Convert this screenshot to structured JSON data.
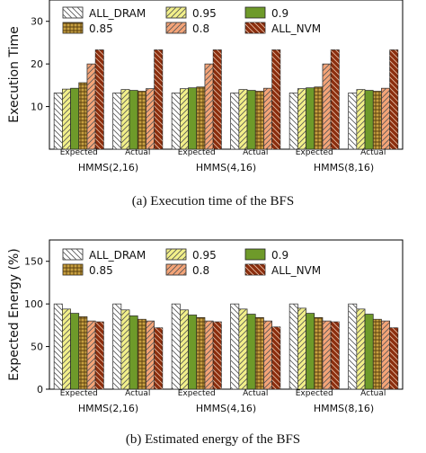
{
  "captions": {
    "a": "(a) Execution time of the BFS",
    "b": "(b) Estimated energy of the BFS"
  },
  "styles": [
    {
      "name": "ALL_DRAM",
      "color": "#ffffff",
      "pattern": "diag-left"
    },
    {
      "name": "0.95",
      "color": "#f2f08a",
      "pattern": "diag-right"
    },
    {
      "name": "0.9",
      "color": "#6e9a2a",
      "pattern": "none"
    },
    {
      "name": "0.85",
      "color": "#c8a040",
      "pattern": "grid"
    },
    {
      "name": "0.8",
      "color": "#f4a478",
      "pattern": "diag-right"
    },
    {
      "name": "ALL_NVM",
      "color": "#8b2e0e",
      "pattern": "diag-left"
    }
  ],
  "chart_data": [
    {
      "type": "bar",
      "title": "",
      "xlabel": "",
      "ylabel": "Execution Time",
      "ylim": [
        0,
        35
      ],
      "yticks": [
        10,
        20,
        30
      ],
      "grid": false,
      "legend": "top, 3 columns",
      "groups": [
        "HMMS(2,16)",
        "HMMS(4,16)",
        "HMMS(8,16)"
      ],
      "categories": [
        "Expected",
        "Actual",
        "Expected",
        "Actual",
        "Expected",
        "Actual"
      ],
      "series": [
        {
          "name": "ALL_DRAM",
          "values": [
            13.2,
            13.2,
            13.2,
            13.2,
            13.2,
            13.2
          ]
        },
        {
          "name": "0.95",
          "values": [
            14.1,
            14.0,
            14.2,
            14.0,
            14.2,
            14.0
          ]
        },
        {
          "name": "0.9",
          "values": [
            14.3,
            13.8,
            14.4,
            13.8,
            14.4,
            13.8
          ]
        },
        {
          "name": "0.85",
          "values": [
            15.6,
            13.6,
            14.6,
            13.6,
            14.6,
            13.6
          ]
        },
        {
          "name": "0.8",
          "values": [
            20.0,
            14.2,
            20.0,
            14.3,
            20.0,
            14.3
          ]
        },
        {
          "name": "ALL_NVM",
          "values": [
            23.3,
            23.3,
            23.3,
            23.3,
            23.3,
            23.3
          ]
        }
      ]
    },
    {
      "type": "bar",
      "title": "",
      "xlabel": "",
      "ylabel": "Expected Energy (%)",
      "ylim": [
        0,
        175
      ],
      "yticks": [
        0,
        50,
        100,
        150
      ],
      "grid": false,
      "legend": "top, 3 columns",
      "groups": [
        "HMMS(2,16)",
        "HMMS(4,16)",
        "HMMS(8,16)"
      ],
      "categories": [
        "Expected",
        "Actual",
        "Expected",
        "Actual",
        "Expected",
        "Actual"
      ],
      "series": [
        {
          "name": "ALL_DRAM",
          "values": [
            100,
            100,
            100,
            100,
            100,
            100
          ]
        },
        {
          "name": "0.95",
          "values": [
            94,
            93,
            93,
            94,
            95,
            94
          ]
        },
        {
          "name": "0.9",
          "values": [
            89,
            86,
            87,
            88,
            89,
            88
          ]
        },
        {
          "name": "0.85",
          "values": [
            85,
            82,
            84,
            84,
            84,
            82
          ]
        },
        {
          "name": "0.8",
          "values": [
            80,
            80,
            80,
            80,
            80,
            80
          ]
        },
        {
          "name": "ALL_NVM",
          "values": [
            79,
            72,
            79,
            73,
            79,
            72
          ]
        }
      ]
    }
  ]
}
